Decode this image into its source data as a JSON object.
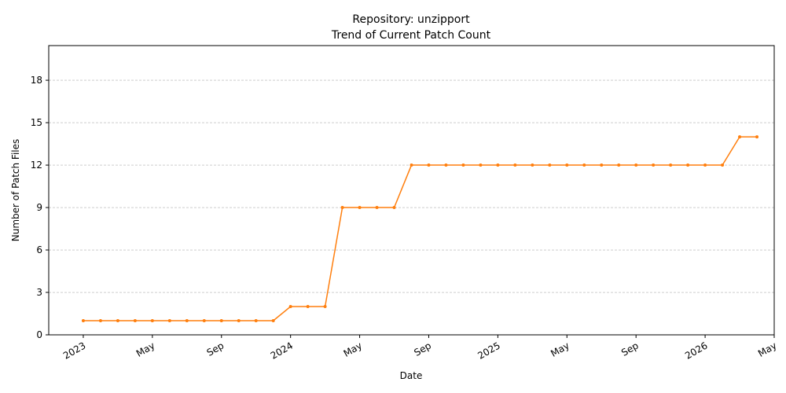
{
  "chart_data": {
    "type": "line",
    "title": "Repository: unzipport",
    "subtitle": "Trend of Current Patch Count",
    "xlabel": "Date",
    "ylabel": "Number of Patch Files",
    "x": [
      "2023-01",
      "2023-02",
      "2023-03",
      "2023-04",
      "2023-05",
      "2023-06",
      "2023-07",
      "2023-08",
      "2023-09",
      "2023-10",
      "2023-11",
      "2023-12",
      "2024-01",
      "2024-02",
      "2024-03",
      "2024-04",
      "2024-05",
      "2024-06",
      "2024-07",
      "2024-08",
      "2024-09",
      "2024-10",
      "2024-11",
      "2024-12",
      "2025-01",
      "2025-02",
      "2025-03",
      "2025-04",
      "2025-05",
      "2025-06",
      "2025-07",
      "2025-08",
      "2025-09",
      "2025-10",
      "2025-11",
      "2025-12",
      "2026-01",
      "2026-02",
      "2026-03",
      "2026-04"
    ],
    "series": [
      {
        "color": "#ff7f0e",
        "values": [
          1,
          1,
          1,
          1,
          1,
          1,
          1,
          1,
          1,
          1,
          1,
          1,
          2,
          2,
          2,
          9,
          9,
          9,
          9,
          12,
          12,
          12,
          12,
          12,
          12,
          12,
          12,
          12,
          12,
          12,
          12,
          12,
          12,
          12,
          12,
          12,
          12,
          12,
          14,
          14
        ]
      }
    ],
    "xlim": [
      "2022-11",
      "2026-05"
    ],
    "xticks": [
      {
        "value": "2023-01",
        "label": "2023"
      },
      {
        "value": "2023-05",
        "label": "May"
      },
      {
        "value": "2023-09",
        "label": "Sep"
      },
      {
        "value": "2024-01",
        "label": "2024"
      },
      {
        "value": "2024-05",
        "label": "May"
      },
      {
        "value": "2024-09",
        "label": "Sep"
      },
      {
        "value": "2025-01",
        "label": "2025"
      },
      {
        "value": "2025-05",
        "label": "May"
      },
      {
        "value": "2025-09",
        "label": "Sep"
      },
      {
        "value": "2026-01",
        "label": "2026"
      },
      {
        "value": "2026-05",
        "label": "May"
      }
    ],
    "ylim": [
      0,
      20.45
    ],
    "yticks": [
      0,
      3,
      6,
      9,
      12,
      15,
      18
    ],
    "grid": true
  }
}
